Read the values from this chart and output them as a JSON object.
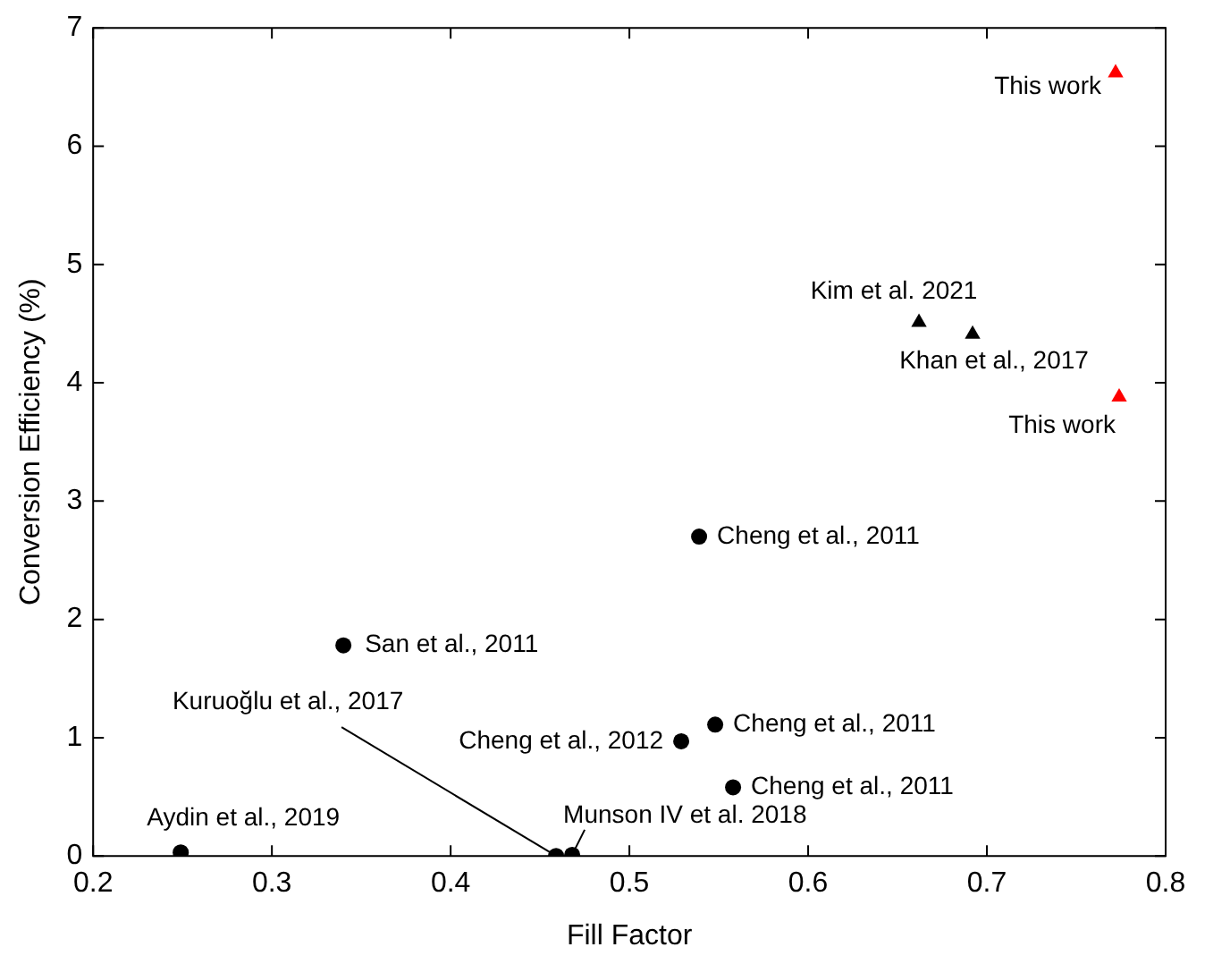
{
  "chart_data": {
    "type": "scatter",
    "xlabel": "Fill Factor",
    "ylabel": "Conversion Efficiency (%)",
    "xlim": [
      0.2,
      0.8
    ],
    "xticks": [
      0.2,
      0.3,
      0.4,
      0.5,
      0.6,
      0.7,
      0.8
    ],
    "ylim": [
      0,
      7
    ],
    "yticks": [
      0,
      1,
      2,
      3,
      4,
      5,
      6,
      7
    ],
    "grid": false,
    "legend": false,
    "series": [
      {
        "color": "#000000",
        "marker": "circle",
        "x": [
          0.539,
          0.34,
          0.529,
          0.548,
          0.558,
          0.249,
          0.459,
          0.468
        ],
        "values": [
          2.7,
          1.78,
          0.97,
          1.11,
          0.58,
          0.03,
          0,
          0.01
        ]
      },
      {
        "color": "#000000",
        "marker": "triangle",
        "x": [
          0.662,
          0.692
        ],
        "values": [
          4.51,
          4.41
        ]
      },
      {
        "color": "#ff0000",
        "marker": "triangle",
        "x": [
          0.772,
          0.774
        ],
        "values": [
          6.62,
          3.88
        ]
      }
    ],
    "annotations": [
      {
        "text": "This work",
        "x": 0.772,
        "y": 6.62
      },
      {
        "text": "This work",
        "x": 0.774,
        "y": 3.88
      },
      {
        "text": "Kim et al. 2021",
        "x": 0.662,
        "y": 4.51
      },
      {
        "text": "Khan et al., 2017",
        "x": 0.692,
        "y": 4.41
      },
      {
        "text": "Cheng et al., 2011",
        "x": 0.539,
        "y": 2.7
      },
      {
        "text": "San et al., 2011",
        "x": 0.34,
        "y": 1.78
      },
      {
        "text": "Cheng et al., 2012",
        "x": 0.529,
        "y": 0.97
      },
      {
        "text": "Cheng et al., 2011",
        "x": 0.548,
        "y": 1.11
      },
      {
        "text": "Cheng et al., 2011",
        "x": 0.558,
        "y": 0.58
      },
      {
        "text": "Aydin et al., 2019",
        "x": 0.249,
        "y": 0.03
      },
      {
        "text": "Kuruoğlu et al., 2017",
        "x": 0.459,
        "y": 0
      },
      {
        "text": "Munson IV et al. 2018",
        "x": 0.468,
        "y": 0.01
      }
    ]
  }
}
